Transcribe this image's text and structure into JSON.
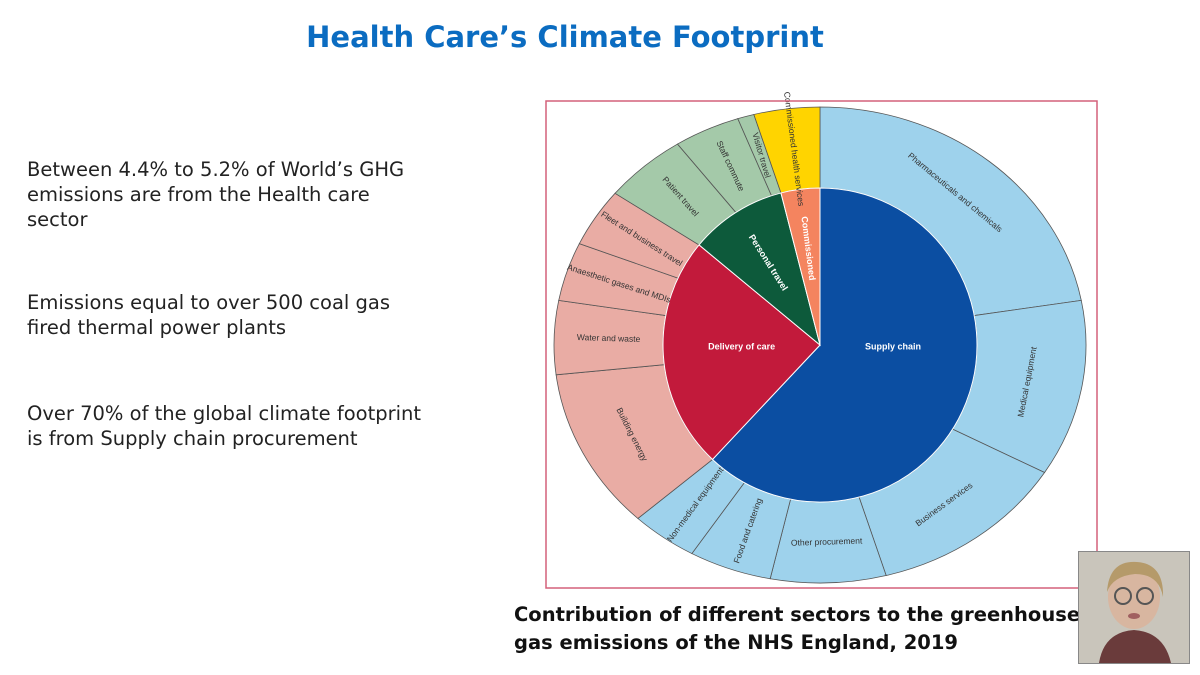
{
  "slide": {
    "title": "Health Care’s Climate Footprint",
    "bullets": [
      [
        "Between 4.4% to 5.2% of World’s GHG",
        "emissions are from the Health care",
        "sector"
      ],
      [
        "Emissions equal to over 500 coal gas",
        "fired thermal power plants"
      ],
      [
        "Over 70% of the global climate footprint",
        "is from Supply chain procurement"
      ]
    ],
    "caption": [
      "Contribution of different sectors to the greenhouse",
      "gas emissions of the NHS England, 2019"
    ]
  },
  "chart_data": {
    "type": "sunburst",
    "categories": [
      "Supply chain",
      "Delivery of care",
      "Personal travel",
      "Commissioned"
    ],
    "values": [
      62,
      24,
      10,
      4
    ],
    "colors": [
      "#0b4ea2",
      "#c21a3b",
      "#0d5a3b",
      "#f4845f"
    ],
    "children": [
      {
        "categories": [
          "Pharmaceuticals and chemicals",
          "Medical equipment",
          "Business services",
          "Other procurement",
          "Food and catering",
          "Non-medical equipment"
        ],
        "values": [
          22,
          12,
          12,
          7,
          5,
          4
        ],
        "color": "#9ed2ec"
      },
      {
        "categories": [
          "Building energy",
          "Water and waste",
          "Anaesthetic gases and MDIs",
          "Fleet and business travel"
        ],
        "values": [
          11,
          5,
          4,
          4
        ],
        "color": "#e9aca4"
      },
      {
        "categories": [
          "Patient travel",
          "Staff commute",
          "Visitor travel"
        ],
        "values": [
          5,
          4,
          1
        ],
        "color": "#a4c9a9"
      },
      {
        "categories": [
          "Commissioned health services"
        ],
        "values": [
          4
        ],
        "color": "#ffd400"
      }
    ]
  }
}
